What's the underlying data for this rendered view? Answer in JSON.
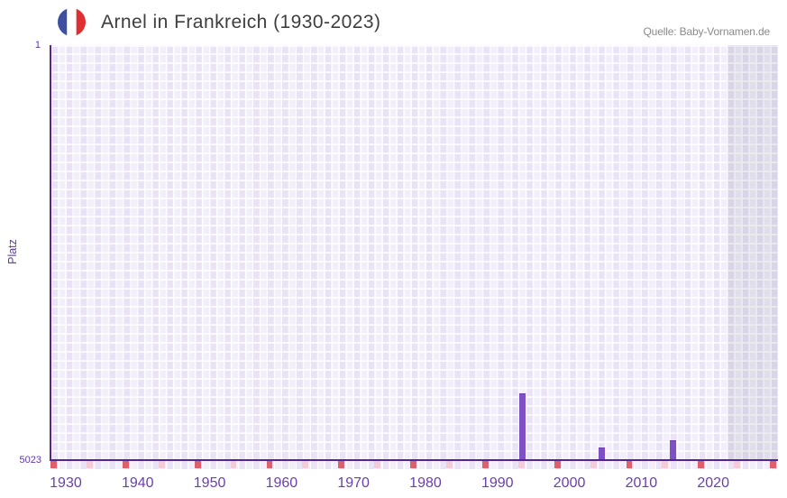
{
  "header": {
    "title": "Arnel in Frankreich (1930-2023)",
    "source": "Quelle: Baby-Vornamen.de",
    "flag_icon": "france-flag-circle"
  },
  "chart_data": {
    "type": "bar",
    "title": "Arnel in Frankreich (1930-2023)",
    "source": "Quelle: Baby-Vornamen.de",
    "xlabel": "",
    "ylabel": "Platz",
    "y_axis": {
      "min": 1,
      "max": 5023,
      "inverted": true,
      "tick_labels": [
        "1",
        "5023"
      ]
    },
    "x_axis": {
      "range_start_year": 1928,
      "range_end_year": 2029,
      "tick_labels": [
        "1930",
        "1940",
        "1950",
        "1960",
        "1970",
        "1980",
        "1990",
        "2000",
        "2010",
        "2020"
      ],
      "tick_years": [
        1930,
        1940,
        1950,
        1960,
        1970,
        1980,
        1990,
        2000,
        2010,
        2020
      ]
    },
    "bars": [
      {
        "year": 1993,
        "platz": 4214
      },
      {
        "year": 2004,
        "platz": 4868
      },
      {
        "year": 2014,
        "platz": 4782
      }
    ],
    "axis_marks": {
      "decade_mark_years": [
        1928,
        1938,
        1948,
        1958,
        1968,
        1978,
        1988,
        1998,
        2008,
        2018,
        2028
      ],
      "half_decade_mark_years": [
        1933,
        1943,
        1953,
        1963,
        1973,
        1983,
        1993,
        2003,
        2013,
        2023
      ]
    },
    "no_data_band": {
      "start_year": 2022,
      "end_year": 2029
    },
    "grid": true,
    "legend": false
  },
  "colors": {
    "bar_fill": "#7F4FC6",
    "bar_edge": "#6E3FAD",
    "axis_line": "#52288F",
    "x_tick_label": "#6B3EAF",
    "y_tick_label": "#5F3AA0",
    "y_axis_title": "#5E399E",
    "title_text": "#3E3E3E",
    "source_text": "#8A8A8A",
    "grid_cell_even_year": "#E9E3F5",
    "grid_cell_odd_year": "#F2EEFA",
    "grid_line": "#FFFFFF",
    "decade_mark": "#DF606B",
    "half_decade_mark": "#F5CBD7",
    "no_data_band_overlay": "rgba(110,105,135,0.12)",
    "flag_blue": "#3C4FA0",
    "flag_white": "#FFFFFF",
    "flag_red": "#DE2F32",
    "background": "#FFFFFF"
  }
}
